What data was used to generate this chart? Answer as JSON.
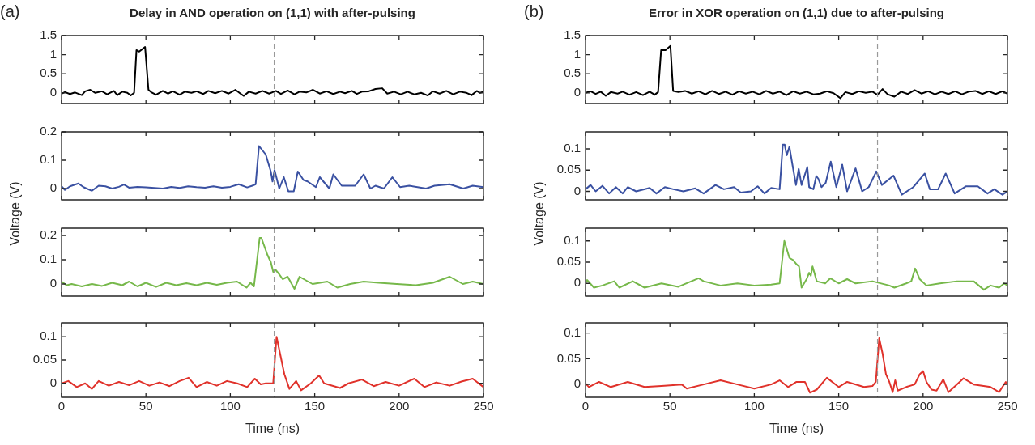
{
  "chart_data": [
    {
      "type": "line",
      "title": "Delay in AND operation on (1,1) with after-pulsing",
      "annotations": [
        "(a)"
      ],
      "tick_labels": "y",
      "xlim": [
        0,
        250
      ],
      "xticks": [
        0,
        50,
        100,
        150,
        200,
        250
      ],
      "ylim": [
        -0.28,
        1.5
      ],
      "yticks": [
        0,
        0.5,
        1,
        1.5
      ],
      "ref_lines": [
        {
          "axis": "x",
          "value": 126,
          "color": "#999999",
          "line_style": "dashed"
        }
      ],
      "series": [
        {
          "color": "#000000",
          "x": [
            0,
            2,
            5,
            8,
            12,
            14,
            17,
            20,
            24,
            27,
            31,
            33,
            36,
            39,
            41,
            43,
            44.4,
            46,
            49.5,
            51.5,
            53,
            56,
            60,
            63,
            66,
            70,
            73,
            77,
            80,
            84,
            87,
            91,
            95,
            99,
            103,
            106,
            108,
            111,
            115,
            119,
            123,
            127,
            130,
            134,
            138,
            141,
            145,
            149,
            153,
            157,
            161,
            165,
            168,
            172,
            175,
            178,
            182,
            186,
            190,
            193,
            197,
            201,
            205,
            209,
            213,
            217,
            220,
            224,
            228,
            232,
            236,
            240,
            243,
            246,
            248,
            250
          ],
          "values": [
            -0.02,
            0.02,
            -0.03,
            0.01,
            -0.06,
            0.04,
            0.08,
            0,
            0.04,
            -0.04,
            0.05,
            -0.06,
            0.03,
            0,
            -0.07,
            0,
            1.12,
            1.08,
            1.2,
            0.08,
            0.02,
            -0.05,
            0.05,
            -0.02,
            0.04,
            -0.05,
            0.03,
            0,
            0.04,
            -0.03,
            0.05,
            -0.01,
            0.05,
            -0.02,
            0.08,
            -0.02,
            -0.08,
            0.03,
            -0.02,
            0.05,
            -0.02,
            0.05,
            -0.03,
            0.06,
            -0.04,
            0.03,
            0.01,
            0.08,
            -0.02,
            0.04,
            -0.03,
            0.03,
            -0.01,
            0.05,
            -0.03,
            0.03,
            0.04,
            0.1,
            0.12,
            -0.02,
            0.03,
            -0.04,
            0.03,
            -0.04,
            0,
            -0.07,
            0.04,
            -0.02,
            0.05,
            -0.04,
            0.03,
            0,
            -0.06,
            0.05,
            0,
            0.03
          ]
        }
      ]
    },
    {
      "type": "line",
      "ylabel": "Voltage (V)",
      "tick_labels": "y",
      "xlim": [
        0,
        250
      ],
      "xticks": [
        0,
        50,
        100,
        150,
        200,
        250
      ],
      "ylim": [
        -0.04,
        0.2
      ],
      "yticks": [
        0,
        0.1,
        0.2
      ],
      "ref_lines": [
        {
          "axis": "x",
          "value": 126,
          "color": "#999999",
          "line_style": "dashed"
        }
      ],
      "series": [
        {
          "color": "#3a51a2",
          "x": [
            0,
            2,
            5,
            10,
            13,
            18,
            22,
            26,
            30,
            34,
            37,
            40,
            45,
            50,
            55,
            60,
            65,
            70,
            75,
            80,
            85,
            90,
            95,
            100,
            105,
            110,
            113,
            115,
            117,
            121,
            124,
            125,
            126.2,
            129,
            131.7,
            134.4,
            137.6,
            140,
            143.4,
            145.8,
            150.7,
            153,
            158.7,
            161,
            166,
            174,
            179,
            183,
            186,
            191,
            196,
            200.6,
            206,
            216,
            221,
            230,
            238,
            243.6,
            250
          ],
          "values": [
            0.008,
            -0.005,
            0.008,
            0.018,
            0.005,
            -0.008,
            0.01,
            0.008,
            0,
            0.006,
            0.014,
            0.003,
            0.006,
            0.004,
            0.002,
            0,
            0.006,
            0.002,
            0.008,
            0.005,
            0.003,
            0.008,
            0.003,
            0.006,
            0.015,
            0.004,
            0.01,
            0.015,
            0.15,
            0.12,
            0.06,
            0.025,
            0.065,
            0,
            0.04,
            -0.01,
            -0.01,
            0.06,
            0.03,
            0.025,
            0.005,
            0.04,
            0,
            0.05,
            0.01,
            0.01,
            0.05,
            0,
            0.01,
            0,
            0.04,
            0.005,
            0.01,
            0,
            0.01,
            0.015,
            0,
            0.01,
            0.005
          ]
        }
      ]
    },
    {
      "type": "line",
      "tick_labels": "y",
      "xlim": [
        0,
        250
      ],
      "xticks": [
        0,
        50,
        100,
        150,
        200,
        250
      ],
      "ylim": [
        -0.05,
        0.23
      ],
      "yticks": [
        0,
        0.1,
        0.2
      ],
      "ref_lines": [
        {
          "axis": "x",
          "value": 126,
          "color": "#999999",
          "line_style": "dashed"
        }
      ],
      "series": [
        {
          "color": "#76b84a",
          "x": [
            0,
            3,
            6,
            12,
            18,
            24,
            30,
            36,
            40,
            45,
            50,
            56,
            62,
            68,
            74,
            80,
            86,
            92,
            98,
            104,
            109.6,
            112,
            114,
            117.4,
            118.4,
            122,
            124,
            125.4,
            126.6,
            129,
            131,
            134,
            138,
            141,
            144.8,
            148.7,
            157.5,
            163.4,
            171,
            179,
            188,
            198.6,
            210,
            220,
            230,
            237.8,
            243.6,
            250
          ],
          "values": [
            0.01,
            -0.005,
            0,
            -0.01,
            0,
            -0.008,
            0.005,
            -0.005,
            0.01,
            -0.01,
            0.005,
            -0.012,
            0.005,
            -0.005,
            0.003,
            -0.005,
            0.005,
            -0.003,
            0.005,
            0.01,
            -0.015,
            0.005,
            -0.01,
            0.19,
            0.19,
            0.12,
            0.09,
            0.05,
            0.06,
            0.04,
            0.02,
            0.03,
            -0.02,
            0.03,
            0.015,
            0,
            0.01,
            -0.015,
            0,
            0.01,
            0.005,
            0,
            -0.005,
            0.005,
            0.03,
            0,
            0.01,
            0
          ]
        }
      ]
    },
    {
      "type": "line",
      "xlabel": "Time (ns)",
      "xlim": [
        0,
        250
      ],
      "xticks": [
        0,
        50,
        100,
        150,
        200,
        250
      ],
      "ylim": [
        -0.03,
        0.13
      ],
      "yticks": [
        0,
        0.05,
        0.1
      ],
      "ref_lines": [
        {
          "axis": "x",
          "value": 126,
          "color": "#999999",
          "line_style": "dashed"
        }
      ],
      "series": [
        {
          "color": "#e0322b",
          "x": [
            0,
            4,
            9,
            14,
            18,
            22,
            28,
            34,
            40,
            46,
            52,
            58,
            64,
            70,
            75.3,
            80,
            86,
            92,
            98,
            104,
            110,
            114.5,
            118,
            121,
            125.4,
            127.4,
            129.7,
            132,
            135,
            139,
            141.9,
            147.7,
            152.6,
            155.6,
            165,
            170,
            178,
            185,
            192,
            200,
            209,
            215,
            222,
            230,
            237,
            243.6,
            250
          ],
          "values": [
            0,
            0.005,
            -0.008,
            0,
            -0.012,
            0.005,
            -0.005,
            0.003,
            -0.004,
            0.005,
            -0.005,
            0.002,
            -0.006,
            0.005,
            0.012,
            -0.008,
            0.003,
            -0.005,
            0.005,
            0,
            -0.008,
            0.01,
            -0.002,
            0,
            0,
            0.1,
            0.06,
            0.02,
            -0.012,
            0.005,
            -0.015,
            0,
            0.017,
            0,
            -0.01,
            0,
            0.008,
            -0.006,
            0.003,
            -0.005,
            0.01,
            -0.008,
            0.002,
            -0.005,
            0.004,
            0.01,
            -0.008
          ]
        }
      ]
    },
    {
      "type": "line",
      "title": "Error in XOR operation on (1,1) due to after-pulsing",
      "annotations": [
        "(b)"
      ],
      "tick_labels": "y",
      "xlim": [
        0,
        250
      ],
      "xticks": [
        0,
        50,
        100,
        150,
        200,
        250
      ],
      "ylim": [
        -0.28,
        1.5
      ],
      "yticks": [
        0,
        0.5,
        1,
        1.5
      ],
      "ref_lines": [
        {
          "axis": "x",
          "value": 173,
          "color": "#999999",
          "line_style": "dashed"
        }
      ],
      "series": [
        {
          "color": "#000000",
          "x": [
            0,
            3,
            6,
            9,
            12,
            15,
            19,
            22,
            26,
            30,
            34,
            38,
            41,
            43,
            44.8,
            47.4,
            50.3,
            51.9,
            55,
            59,
            63,
            67,
            71,
            75,
            79,
            83,
            87,
            91,
            95,
            99,
            103,
            107,
            111,
            115,
            119,
            123,
            127,
            131,
            135,
            139,
            143,
            147,
            151,
            154,
            158,
            162,
            166,
            170,
            173,
            176,
            179,
            183,
            187,
            191,
            195,
            199,
            203,
            207,
            211,
            215,
            219,
            223,
            227,
            231,
            235,
            239,
            243,
            247,
            250
          ],
          "values": [
            0,
            0.04,
            -0.03,
            0.03,
            -0.08,
            0.02,
            -0.02,
            0.03,
            -0.05,
            0.02,
            -0.06,
            0.03,
            -0.05,
            0.02,
            1.12,
            1.12,
            1.23,
            0.05,
            0.02,
            0.05,
            -0.02,
            0.04,
            -0.04,
            0.05,
            -0.03,
            0.03,
            -0.05,
            0.04,
            -0.02,
            0.03,
            -0.04,
            0.05,
            -0.02,
            0.03,
            -0.06,
            0.04,
            -0.02,
            0.03,
            -0.04,
            -0.02,
            0.04,
            -0.01,
            -0.14,
            0.02,
            -0.03,
            0.04,
            0,
            0.03,
            -0.05,
            0.1,
            -0.04,
            -0.1,
            0.03,
            -0.03,
            0.07,
            -0.02,
            0.04,
            -0.04,
            0.03,
            -0.03,
            0.04,
            -0.04,
            0.03,
            0.05,
            -0.03,
            0.04,
            -0.03,
            0.04,
            -0.02
          ]
        }
      ]
    },
    {
      "type": "line",
      "ylabel": "Voltage (V)",
      "tick_labels": "y",
      "xlim": [
        0,
        250
      ],
      "xticks": [
        0,
        50,
        100,
        150,
        200,
        250
      ],
      "ylim": [
        -0.02,
        0.14
      ],
      "yticks": [
        0,
        0.05,
        0.1
      ],
      "ref_lines": [
        {
          "axis": "x",
          "value": 173,
          "color": "#999999",
          "line_style": "dashed"
        }
      ],
      "series": [
        {
          "color": "#3a51a2",
          "x": [
            0,
            3,
            6,
            10,
            14,
            18,
            22,
            25,
            30,
            38,
            42,
            47,
            52,
            58,
            65,
            70,
            77,
            82,
            88,
            92,
            98,
            102,
            106,
            110,
            115,
            116.9,
            118,
            119.2,
            120.8,
            122.7,
            124.7,
            126.3,
            128,
            131.4,
            132.5,
            135,
            136.7,
            137.9,
            139.8,
            142.3,
            145.3,
            148.6,
            152.1,
            155,
            160,
            163.9,
            167.8,
            172.3,
            175.6,
            182.5,
            187.4,
            194.2,
            201,
            204,
            208.9,
            213.4,
            218.7,
            225.5,
            232.4,
            238.2,
            242.2,
            247,
            250
          ],
          "values": [
            0.005,
            0.015,
            0,
            0.013,
            -0.005,
            0.01,
            -0.005,
            0.01,
            0,
            0.008,
            -0.005,
            0.01,
            0.005,
            0,
            0.007,
            -0.005,
            0.015,
            0.005,
            0.01,
            -0.003,
            0,
            0.012,
            -0.005,
            0.008,
            0.005,
            0.11,
            0.11,
            0.085,
            0.105,
            0.06,
            0.015,
            0.053,
            0.015,
            0.057,
            0.01,
            0.005,
            0.036,
            0.03,
            0.01,
            0.02,
            0.07,
            0.01,
            0.063,
            0,
            0.054,
            0,
            0.01,
            0.047,
            0.015,
            0.037,
            -0.008,
            0.01,
            0.042,
            0.005,
            0.005,
            0.042,
            -0.005,
            0.012,
            0.012,
            -0.005,
            0.005,
            -0.008,
            0
          ]
        }
      ]
    },
    {
      "type": "line",
      "tick_labels": "y",
      "xlim": [
        0,
        250
      ],
      "xticks": [
        0,
        50,
        100,
        150,
        200,
        250
      ],
      "ylim": [
        -0.03,
        0.13
      ],
      "yticks": [
        0,
        0.05,
        0.1
      ],
      "ref_lines": [
        {
          "axis": "x",
          "value": 173,
          "color": "#999999",
          "line_style": "dashed"
        }
      ],
      "series": [
        {
          "color": "#76b84a",
          "x": [
            0,
            1,
            5,
            10,
            17,
            20,
            28,
            35,
            45,
            55,
            67,
            70,
            80,
            90,
            100,
            110,
            115,
            117.8,
            120.8,
            123,
            125,
            126.5,
            128,
            131,
            132.5,
            133.5,
            134.5,
            137,
            142,
            145,
            150,
            155,
            160,
            170,
            180,
            183,
            190,
            193,
            195.3,
            198,
            202,
            210,
            220,
            230,
            236,
            240,
            245,
            248,
            250
          ],
          "values": [
            0,
            0.008,
            -0.01,
            -0.005,
            0.005,
            -0.01,
            0.005,
            -0.01,
            0,
            -0.008,
            0.012,
            0.005,
            -0.005,
            0,
            -0.005,
            -0.003,
            0,
            0.1,
            0.06,
            0.055,
            0.045,
            0.04,
            -0.01,
            0.01,
            0.025,
            0.018,
            0.04,
            0.005,
            0,
            0.012,
            0,
            0.01,
            0,
            0.005,
            -0.005,
            -0.01,
            0,
            0.005,
            0.035,
            0.01,
            -0.005,
            0,
            0.005,
            0.005,
            -0.015,
            -0.005,
            -0.01,
            0,
            -0.005
          ]
        }
      ]
    },
    {
      "type": "line",
      "xlabel": "Time (ns)",
      "xlim": [
        0,
        250
      ],
      "xticks": [
        0,
        50,
        100,
        150,
        200,
        250
      ],
      "ylim": [
        -0.025,
        0.12
      ],
      "yticks": [
        0,
        0.05,
        0.1
      ],
      "ref_lines": [
        {
          "axis": "x",
          "value": 173,
          "color": "#999999",
          "line_style": "dashed"
        }
      ],
      "series": [
        {
          "color": "#e0322b",
          "x": [
            0,
            2,
            8,
            15,
            25,
            35,
            45,
            57,
            60,
            70,
            80,
            90,
            100,
            110,
            115,
            120,
            125,
            130,
            133,
            137,
            143,
            150,
            155,
            165,
            170,
            172,
            174,
            176,
            178,
            180,
            182,
            183.5,
            185,
            190,
            195,
            198,
            200,
            202,
            205,
            208,
            212,
            215,
            220,
            224,
            230,
            240,
            245,
            249,
            250
          ],
          "values": [
            0.002,
            -0.005,
            0.005,
            -0.005,
            0.005,
            -0.005,
            -0.003,
            0,
            -0.008,
            0,
            0.008,
            0,
            -0.008,
            0,
            0.008,
            -0.005,
            0.005,
            0.005,
            -0.016,
            -0.01,
            0.013,
            -0.005,
            0.005,
            -0.005,
            -0.003,
            0.005,
            0.09,
            0.06,
            0.02,
            0.005,
            -0.015,
            0.008,
            -0.012,
            -0.005,
            0,
            0.02,
            0.026,
            0.005,
            -0.01,
            -0.012,
            0.01,
            -0.015,
            0,
            0.012,
            0,
            -0.005,
            -0.015,
            0.005,
            0
          ]
        }
      ]
    }
  ]
}
